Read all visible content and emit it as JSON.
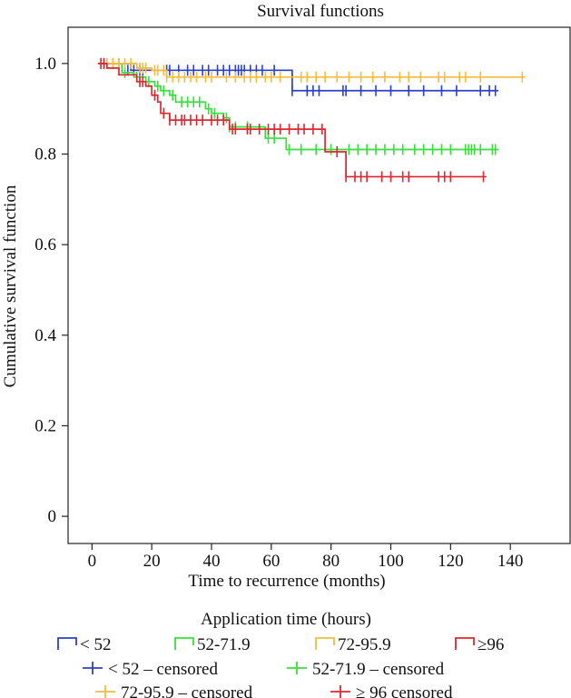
{
  "chart_data": {
    "type": "line",
    "subtype": "kaplan-meier-step",
    "title": "Survival functions",
    "xlabel": "Time to recurrence (months)",
    "ylabel": "Cumulative survival function",
    "xlim": [
      -8,
      160
    ],
    "ylim": [
      -0.06,
      1.08
    ],
    "xticks": [
      0,
      20,
      40,
      60,
      80,
      100,
      120,
      140
    ],
    "yticks": [
      0,
      0.2,
      0.4,
      0.6,
      0.8,
      1.0
    ],
    "ytick_labels": [
      "0",
      "0.2",
      "0.4",
      "0.6",
      "0.8",
      "1.0"
    ],
    "grid": false,
    "legend_title": "Application time (hours)",
    "legend_placement": "bottom",
    "series": [
      {
        "name": "< 52",
        "color": "#2b3fd1",
        "steps": [
          [
            2,
            1.0
          ],
          [
            13,
            0.985
          ],
          [
            67,
            0.94
          ],
          [
            136,
            0.94
          ]
        ],
        "censored": [
          [
            3,
            1.0
          ],
          [
            4,
            1.0
          ],
          [
            12,
            0.985
          ],
          [
            14,
            0.985
          ],
          [
            16,
            0.985
          ],
          [
            17,
            0.985
          ],
          [
            25,
            0.985
          ],
          [
            26,
            0.985
          ],
          [
            29,
            0.985
          ],
          [
            32,
            0.985
          ],
          [
            34,
            0.985
          ],
          [
            37,
            0.985
          ],
          [
            39,
            0.985
          ],
          [
            42,
            0.985
          ],
          [
            44,
            0.985
          ],
          [
            46,
            0.985
          ],
          [
            48,
            0.985
          ],
          [
            49,
            0.985
          ],
          [
            50,
            0.985
          ],
          [
            51,
            0.985
          ],
          [
            53,
            0.985
          ],
          [
            55,
            0.985
          ],
          [
            57,
            0.985
          ],
          [
            61,
            0.985
          ],
          [
            67,
            0.94
          ],
          [
            72,
            0.94
          ],
          [
            74,
            0.94
          ],
          [
            76,
            0.94
          ],
          [
            84,
            0.94
          ],
          [
            85,
            0.94
          ],
          [
            90,
            0.94
          ],
          [
            95,
            0.94
          ],
          [
            100,
            0.94
          ],
          [
            106,
            0.94
          ],
          [
            111,
            0.94
          ],
          [
            117,
            0.94
          ],
          [
            122,
            0.94
          ],
          [
            130,
            0.94
          ],
          [
            133,
            0.94
          ],
          [
            135,
            0.94
          ]
        ]
      },
      {
        "name": "52-71.9",
        "color": "#35e03a",
        "steps": [
          [
            2,
            1.0
          ],
          [
            10,
            0.98
          ],
          [
            14,
            0.97
          ],
          [
            18,
            0.96
          ],
          [
            21,
            0.95
          ],
          [
            23,
            0.94
          ],
          [
            26,
            0.93
          ],
          [
            28,
            0.915
          ],
          [
            38,
            0.9
          ],
          [
            40,
            0.89
          ],
          [
            44,
            0.88
          ],
          [
            46,
            0.86
          ],
          [
            58,
            0.835
          ],
          [
            65,
            0.81
          ],
          [
            136,
            0.81
          ]
        ],
        "censored": [
          [
            5,
            1.0
          ],
          [
            7,
            1.0
          ],
          [
            9,
            1.0
          ],
          [
            11,
            0.98
          ],
          [
            15,
            0.97
          ],
          [
            19,
            0.96
          ],
          [
            22,
            0.95
          ],
          [
            24,
            0.94
          ],
          [
            27,
            0.93
          ],
          [
            30,
            0.915
          ],
          [
            32,
            0.915
          ],
          [
            34,
            0.915
          ],
          [
            36,
            0.915
          ],
          [
            39,
            0.9
          ],
          [
            41,
            0.89
          ],
          [
            45,
            0.88
          ],
          [
            46,
            0.86
          ],
          [
            48,
            0.86
          ],
          [
            52,
            0.86
          ],
          [
            59,
            0.835
          ],
          [
            61,
            0.835
          ],
          [
            66,
            0.81
          ],
          [
            70,
            0.81
          ],
          [
            75,
            0.81
          ],
          [
            80,
            0.81
          ],
          [
            86,
            0.81
          ],
          [
            89,
            0.81
          ],
          [
            92,
            0.81
          ],
          [
            95,
            0.81
          ],
          [
            98,
            0.81
          ],
          [
            101,
            0.81
          ],
          [
            104,
            0.81
          ],
          [
            108,
            0.81
          ],
          [
            111,
            0.81
          ],
          [
            114,
            0.81
          ],
          [
            117,
            0.81
          ],
          [
            120,
            0.81
          ],
          [
            125,
            0.81
          ],
          [
            126,
            0.81
          ],
          [
            127,
            0.81
          ],
          [
            128,
            0.81
          ],
          [
            130,
            0.81
          ],
          [
            134,
            0.81
          ],
          [
            135,
            0.81
          ]
        ]
      },
      {
        "name": "72-95.9",
        "color": "#f6bc3c",
        "steps": [
          [
            2,
            1.0
          ],
          [
            15,
            0.99
          ],
          [
            20,
            0.985
          ],
          [
            25,
            0.97
          ],
          [
            145,
            0.97
          ]
        ],
        "censored": [
          [
            4,
            1.0
          ],
          [
            5,
            1.0
          ],
          [
            7,
            1.0
          ],
          [
            9,
            1.0
          ],
          [
            11,
            1.0
          ],
          [
            13,
            1.0
          ],
          [
            16,
            0.99
          ],
          [
            17,
            0.99
          ],
          [
            18,
            0.99
          ],
          [
            21,
            0.985
          ],
          [
            22,
            0.985
          ],
          [
            24,
            0.985
          ],
          [
            25,
            0.97
          ],
          [
            27,
            0.97
          ],
          [
            29,
            0.97
          ],
          [
            31,
            0.97
          ],
          [
            33,
            0.97
          ],
          [
            35,
            0.97
          ],
          [
            38,
            0.97
          ],
          [
            40,
            0.97
          ],
          [
            45,
            0.97
          ],
          [
            48,
            0.97
          ],
          [
            51,
            0.97
          ],
          [
            53,
            0.97
          ],
          [
            55,
            0.97
          ],
          [
            58,
            0.97
          ],
          [
            60,
            0.97
          ],
          [
            63,
            0.97
          ],
          [
            70,
            0.97
          ],
          [
            72,
            0.97
          ],
          [
            75,
            0.97
          ],
          [
            78,
            0.97
          ],
          [
            82,
            0.97
          ],
          [
            86,
            0.97
          ],
          [
            90,
            0.97
          ],
          [
            94,
            0.97
          ],
          [
            98,
            0.97
          ],
          [
            103,
            0.97
          ],
          [
            106,
            0.97
          ],
          [
            110,
            0.97
          ],
          [
            116,
            0.97
          ],
          [
            118,
            0.97
          ],
          [
            123,
            0.97
          ],
          [
            125,
            0.97
          ],
          [
            130,
            0.97
          ],
          [
            144,
            0.97
          ]
        ]
      },
      {
        "name": "≥96",
        "color": "#e0262e",
        "steps": [
          [
            2,
            1.0
          ],
          [
            5,
            0.99
          ],
          [
            9,
            0.975
          ],
          [
            15,
            0.96
          ],
          [
            18,
            0.95
          ],
          [
            20,
            0.93
          ],
          [
            22,
            0.915
          ],
          [
            23,
            0.89
          ],
          [
            26,
            0.875
          ],
          [
            46,
            0.855
          ],
          [
            78,
            0.805
          ],
          [
            85,
            0.75
          ],
          [
            132,
            0.75
          ]
        ],
        "censored": [
          [
            3,
            1.0
          ],
          [
            4,
            1.0
          ],
          [
            16,
            0.96
          ],
          [
            17,
            0.96
          ],
          [
            21,
            0.93
          ],
          [
            24,
            0.89
          ],
          [
            26,
            0.875
          ],
          [
            28,
            0.875
          ],
          [
            30,
            0.875
          ],
          [
            31,
            0.875
          ],
          [
            33,
            0.875
          ],
          [
            35,
            0.875
          ],
          [
            37,
            0.875
          ],
          [
            40,
            0.875
          ],
          [
            42,
            0.875
          ],
          [
            44,
            0.875
          ],
          [
            47,
            0.855
          ],
          [
            48,
            0.855
          ],
          [
            52,
            0.855
          ],
          [
            53,
            0.855
          ],
          [
            56,
            0.855
          ],
          [
            59,
            0.855
          ],
          [
            61,
            0.855
          ],
          [
            63,
            0.855
          ],
          [
            66,
            0.855
          ],
          [
            69,
            0.855
          ],
          [
            71,
            0.855
          ],
          [
            74,
            0.855
          ],
          [
            77,
            0.855
          ],
          [
            82,
            0.805
          ],
          [
            85,
            0.75
          ],
          [
            88,
            0.75
          ],
          [
            90,
            0.75
          ],
          [
            92,
            0.75
          ],
          [
            97,
            0.75
          ],
          [
            100,
            0.75
          ],
          [
            104,
            0.75
          ],
          [
            106,
            0.75
          ],
          [
            116,
            0.75
          ],
          [
            118,
            0.75
          ],
          [
            120,
            0.75
          ],
          [
            131,
            0.75
          ]
        ]
      }
    ],
    "censored_legend": [
      "< 52 – censored",
      "52-71.9 – censored",
      "72-95.9 – censored",
      "≥ 96 censored"
    ]
  }
}
